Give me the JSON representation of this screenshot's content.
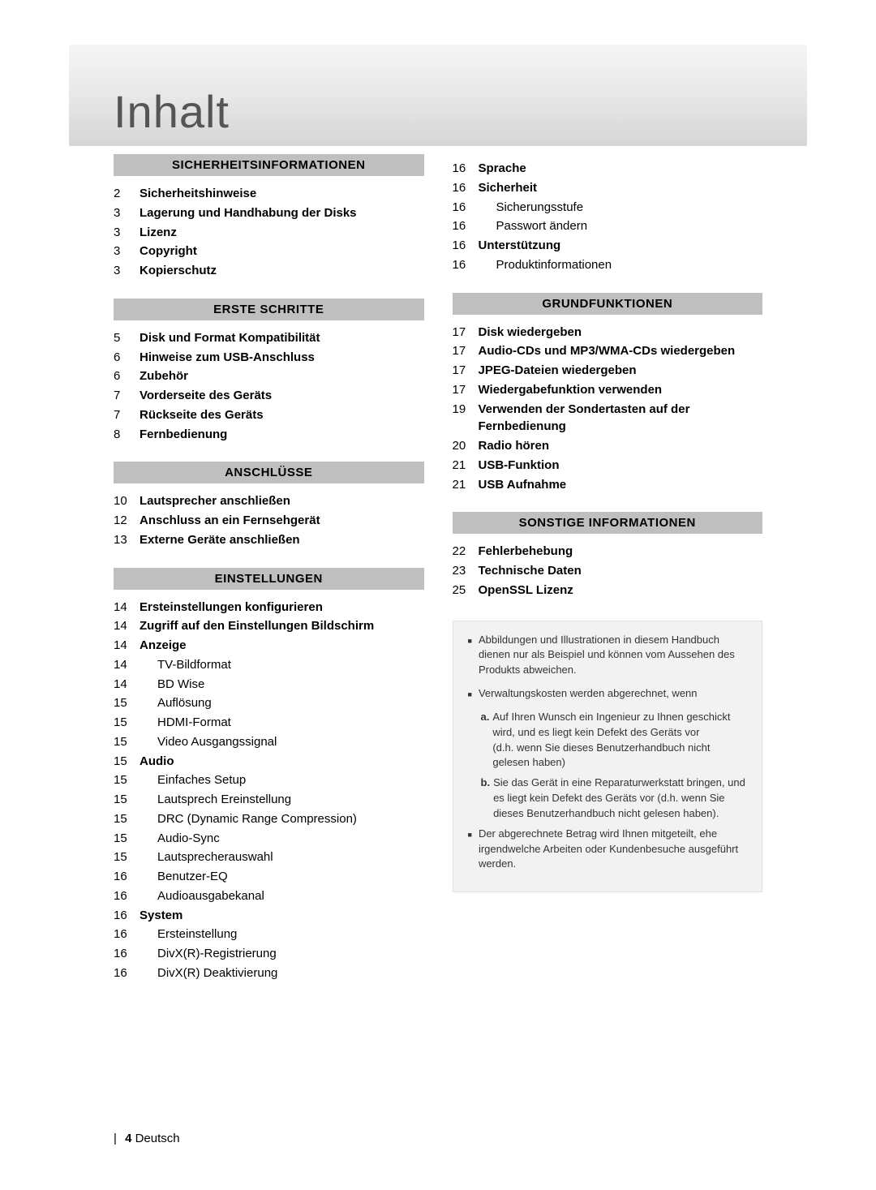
{
  "title": "Inhalt",
  "footer": {
    "page": "4",
    "lang": "Deutsch"
  },
  "colors": {
    "section_bg": "#bfbfbf",
    "note_bg": "#f2f2f2",
    "header_gradient_top": "#f5f5f5",
    "header_gradient_bottom": "#d5d5d5"
  },
  "left_sections": [
    {
      "heading": "SICHERHEITSINFORMATIONEN",
      "items": [
        {
          "page": "2",
          "text": "Sicherheitshinweise",
          "bold": true
        },
        {
          "page": "3",
          "text": "Lagerung und Handhabung der Disks",
          "bold": true
        },
        {
          "page": "3",
          "text": "Lizenz",
          "bold": true
        },
        {
          "page": "3",
          "text": "Copyright",
          "bold": true
        },
        {
          "page": "3",
          "text": "Kopierschutz",
          "bold": true
        }
      ]
    },
    {
      "heading": "ERSTE SCHRITTE",
      "items": [
        {
          "page": "5",
          "text": "Disk und Format Kompatibilität",
          "bold": true
        },
        {
          "page": "6",
          "text": "Hinweise zum USB-Anschluss",
          "bold": true
        },
        {
          "page": "6",
          "text": "Zubehör",
          "bold": true
        },
        {
          "page": "7",
          "text": "Vorderseite des Geräts",
          "bold": true
        },
        {
          "page": "7",
          "text": "Rückseite des Geräts",
          "bold": true
        },
        {
          "page": "8",
          "text": "Fernbedienung",
          "bold": true
        }
      ]
    },
    {
      "heading": "ANSCHLÜSSE",
      "items": [
        {
          "page": "10",
          "text": "Lautsprecher anschließen",
          "bold": true
        },
        {
          "page": "12",
          "text": "Anschluss an ein Fernsehgerät",
          "bold": true
        },
        {
          "page": "13",
          "text": "Externe Geräte anschließen",
          "bold": true
        }
      ]
    },
    {
      "heading": "EINSTELLUNGEN",
      "items": [
        {
          "page": "14",
          "text": "Ersteinstellungen konfigurieren",
          "bold": true
        },
        {
          "page": "14",
          "text": "Zugriff auf den Einstellungen Bildschirm",
          "bold": true
        },
        {
          "page": "14",
          "text": "Anzeige",
          "bold": true
        },
        {
          "page": "14",
          "text": "TV-Bildformat",
          "sub": true
        },
        {
          "page": "14",
          "text": "BD Wise",
          "sub": true
        },
        {
          "page": "15",
          "text": "Auflösung",
          "sub": true
        },
        {
          "page": "15",
          "text": "HDMI-Format",
          "sub": true
        },
        {
          "page": "15",
          "text": "Video Ausgangssignal",
          "sub": true
        },
        {
          "page": "15",
          "text": "Audio",
          "bold": true
        },
        {
          "page": "15",
          "text": "Einfaches Setup",
          "sub": true
        },
        {
          "page": "15",
          "text": "Lautsprech Ereinstellung",
          "sub": true
        },
        {
          "page": "15",
          "text": "DRC (Dynamic Range Compression)",
          "sub": true
        },
        {
          "page": "15",
          "text": "Audio-Sync",
          "sub": true
        },
        {
          "page": "15",
          "text": "Lautsprecherauswahl",
          "sub": true
        },
        {
          "page": "16",
          "text": "Benutzer-EQ",
          "sub": true
        },
        {
          "page": "16",
          "text": "Audioausgabekanal",
          "sub": true
        },
        {
          "page": "16",
          "text": "System",
          "bold": true
        },
        {
          "page": "16",
          "text": "Ersteinstellung",
          "sub": true
        },
        {
          "page": "16",
          "text": "DivX(R)-Registrierung",
          "sub": true
        },
        {
          "page": "16",
          "text": "DivX(R) Deaktivierung",
          "sub": true
        }
      ]
    }
  ],
  "right_top_items": [
    {
      "page": "16",
      "text": "Sprache",
      "bold": true
    },
    {
      "page": "16",
      "text": "Sicherheit",
      "bold": true
    },
    {
      "page": "16",
      "text": "Sicherungsstufe",
      "sub": true
    },
    {
      "page": "16",
      "text": "Passwort ändern",
      "sub": true
    },
    {
      "page": "16",
      "text": "Unterstützung",
      "bold": true
    },
    {
      "page": "16",
      "text": "Produktinformationen",
      "sub": true
    }
  ],
  "right_sections": [
    {
      "heading": "GRUNDFUNKTIONEN",
      "items": [
        {
          "page": "17",
          "text": "Disk wiedergeben",
          "bold": true
        },
        {
          "page": "17",
          "text": "Audio-CDs und MP3/WMA-CDs wiedergeben",
          "bold": true
        },
        {
          "page": "17",
          "text": "JPEG-Dateien wiedergeben",
          "bold": true
        },
        {
          "page": "17",
          "text": "Wiedergabefunktion verwenden",
          "bold": true
        },
        {
          "page": "19",
          "text": "Verwenden der Sondertasten auf der Fernbedienung",
          "bold": true
        },
        {
          "page": "20",
          "text": "Radio hören",
          "bold": true
        },
        {
          "page": "21",
          "text": "USB-Funktion",
          "bold": true
        },
        {
          "page": "21",
          "text": "USB Aufnahme",
          "bold": true
        }
      ]
    },
    {
      "heading": "SONSTIGE INFORMATIONEN",
      "items": [
        {
          "page": "22",
          "text": "Fehlerbehebung",
          "bold": true
        },
        {
          "page": "23",
          "text": "Technische Daten",
          "bold": true
        },
        {
          "page": "25",
          "text": "OpenSSL Lizenz",
          "bold": true
        }
      ]
    }
  ],
  "note": {
    "bullets": [
      "Abbildungen und Illustrationen in diesem Handbuch dienen nur als Beispiel und können vom Aussehen des Produkts abweichen.",
      "Verwaltungskosten werden abgerechnet, wenn"
    ],
    "sub_a_label": "a.",
    "sub_a_text": "Auf Ihren Wunsch ein Ingenieur zu Ihnen geschickt wird, und es liegt kein Defekt des Geräts vor",
    "sub_a_paren": "(d.h. wenn Sie dieses Benutzerhandbuch nicht gelesen haben)",
    "sub_b_label": "b.",
    "sub_b_text": "Sie das Gerät in eine Reparaturwerkstatt bringen, und es liegt kein Defekt des Geräts vor (d.h. wenn Sie dieses Benutzerhandbuch nicht gelesen haben).",
    "bullet3": "Der abgerechnete Betrag wird Ihnen mitgeteilt, ehe irgendwelche Arbeiten oder Kundenbesuche ausgeführt werden."
  }
}
